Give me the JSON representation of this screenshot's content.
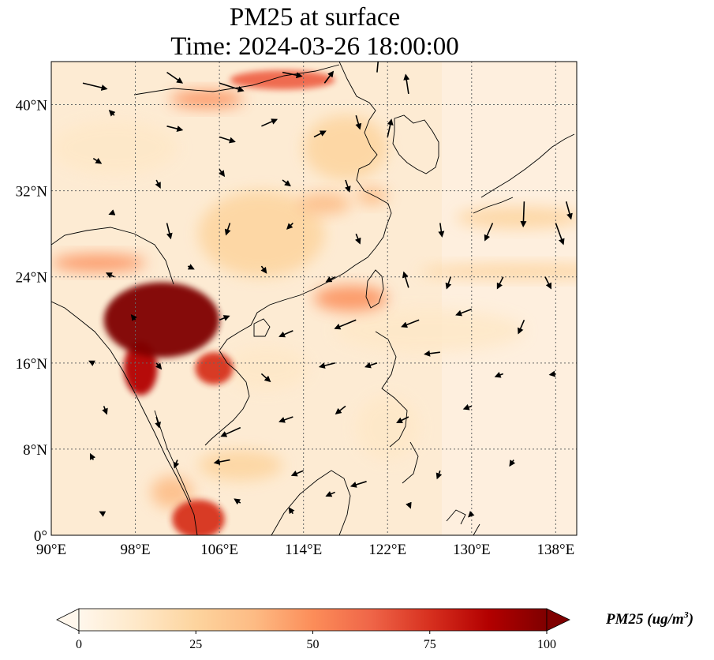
{
  "title": {
    "line1": "PM25 at surface",
    "line2": "Time: 2024-03-26 18:00:00"
  },
  "map": {
    "projection": "PlateCarree",
    "lon_range": [
      90,
      140
    ],
    "lat_range": [
      0,
      44
    ],
    "gridlines": "dotted",
    "coastlines": true,
    "lon_ticks": [
      90,
      98,
      106,
      114,
      122,
      130,
      138
    ],
    "lat_ticks": [
      0,
      8,
      16,
      24,
      32,
      40
    ],
    "lon_tick_labels": [
      "90°E",
      "98°E",
      "106°E",
      "114°E",
      "122°E",
      "130°E",
      "138°E"
    ],
    "lat_tick_labels": [
      "0°",
      "8°N",
      "16°N",
      "24°N",
      "32°N",
      "40°N"
    ]
  },
  "colorbar": {
    "colormap": "OrRd",
    "extend": "both",
    "range": [
      0,
      100
    ],
    "ticks": [
      0,
      25,
      50,
      75,
      100
    ],
    "tick_labels": [
      "0",
      "25",
      "50",
      "75",
      "100"
    ],
    "label_prefix": "PM25 (ug/m",
    "label_exp": "3",
    "label_suffix": ")",
    "colors": [
      "#fff7ec",
      "#fee8c8",
      "#fdd49e",
      "#fdbb84",
      "#fc8d59",
      "#ef6548",
      "#d7301f",
      "#b30000",
      "#7f0000"
    ]
  },
  "pm25_hotspots": [
    {
      "lon": 100.5,
      "lat": 20.0,
      "rx": 5.5,
      "ry": 3.5,
      "value": 100
    },
    {
      "lon": 98.5,
      "lat": 15.5,
      "rx": 1.6,
      "ry": 2.5,
      "value": 90
    },
    {
      "lon": 105.5,
      "lat": 15.5,
      "rx": 1.8,
      "ry": 1.5,
      "value": 80
    },
    {
      "lon": 94.5,
      "lat": 25.3,
      "rx": 4.5,
      "ry": 0.8,
      "value": 45
    },
    {
      "lon": 104.8,
      "lat": 40.5,
      "rx": 3.5,
      "ry": 0.8,
      "value": 55
    },
    {
      "lon": 112.0,
      "lat": 42.3,
      "rx": 5.0,
      "ry": 0.9,
      "value": 65
    },
    {
      "lon": 118.5,
      "lat": 22.0,
      "rx": 3.5,
      "ry": 1.2,
      "value": 50
    },
    {
      "lon": 108.0,
      "lat": 6.5,
      "rx": 4.0,
      "ry": 1.4,
      "value": 30
    },
    {
      "lon": 104.0,
      "lat": 1.5,
      "rx": 2.5,
      "ry": 1.8,
      "value": 70
    },
    {
      "lon": 116.0,
      "lat": 30.8,
      "rx": 2.5,
      "ry": 1.0,
      "value": 35
    },
    {
      "lon": 110.0,
      "lat": 28.0,
      "rx": 6.0,
      "ry": 4.0,
      "value": 22
    },
    {
      "lon": 118.0,
      "lat": 36.0,
      "rx": 4.0,
      "ry": 3.0,
      "value": 24
    },
    {
      "lon": 120.5,
      "lat": 31.5,
      "rx": 1.5,
      "ry": 0.8,
      "value": 42
    },
    {
      "lon": 135.0,
      "lat": 24.5,
      "rx": 10.0,
      "ry": 0.7,
      "value": 22
    },
    {
      "lon": 134.5,
      "lat": 29.5,
      "rx": 6.0,
      "ry": 1.0,
      "value": 24
    },
    {
      "lon": 126.0,
      "lat": 19.0,
      "rx": 9.0,
      "ry": 2.0,
      "value": 14
    },
    {
      "lon": 96.0,
      "lat": 36.0,
      "rx": 6.0,
      "ry": 2.5,
      "value": 12
    },
    {
      "lon": 110.5,
      "lat": 15.5,
      "rx": 4.0,
      "ry": 2.0,
      "value": 14
    },
    {
      "lon": 122.0,
      "lat": 10.0,
      "rx": 3.0,
      "ry": 3.0,
      "value": 12
    },
    {
      "lon": 101.5,
      "lat": 4.0,
      "rx": 2.0,
      "ry": 1.5,
      "value": 35
    }
  ],
  "wind_vectors": [
    {
      "lon": 93,
      "lat": 42,
      "u": 2.5,
      "v": -0.6
    },
    {
      "lon": 101,
      "lat": 43,
      "u": 1.6,
      "v": -1.1
    },
    {
      "lon": 106,
      "lat": 42,
      "u": 2.5,
      "v": -0.8
    },
    {
      "lon": 112,
      "lat": 43,
      "u": 2.0,
      "v": -0.4
    },
    {
      "lon": 116,
      "lat": 42,
      "u": 0.9,
      "v": 1.2
    },
    {
      "lon": 121,
      "lat": 43,
      "u": 0.2,
      "v": 2.1
    },
    {
      "lon": 124,
      "lat": 41,
      "u": -0.3,
      "v": 2.0
    },
    {
      "lon": 96,
      "lat": 39,
      "u": -0.5,
      "v": 0.5
    },
    {
      "lon": 101,
      "lat": 38,
      "u": 1.6,
      "v": -0.4
    },
    {
      "lon": 106,
      "lat": 37,
      "u": 1.6,
      "v": -0.5
    },
    {
      "lon": 110,
      "lat": 38,
      "u": 1.6,
      "v": 0.7
    },
    {
      "lon": 115,
      "lat": 37,
      "u": 1.2,
      "v": 0.6
    },
    {
      "lon": 119,
      "lat": 39,
      "u": 0.4,
      "v": -1.4
    },
    {
      "lon": 122,
      "lat": 37,
      "u": 0.4,
      "v": 1.8
    },
    {
      "lon": 94,
      "lat": 35,
      "u": 0.8,
      "v": -0.5
    },
    {
      "lon": 100,
      "lat": 33,
      "u": 0.4,
      "v": -0.8
    },
    {
      "lon": 106,
      "lat": 34,
      "u": 0.5,
      "v": -0.7
    },
    {
      "lon": 112,
      "lat": 33,
      "u": 0.8,
      "v": -0.6
    },
    {
      "lon": 118,
      "lat": 33,
      "u": 0.4,
      "v": -1.2
    },
    {
      "lon": 96,
      "lat": 30,
      "u": -0.5,
      "v": -0.2
    },
    {
      "lon": 101,
      "lat": 29,
      "u": 0.4,
      "v": -1.6
    },
    {
      "lon": 107,
      "lat": 29,
      "u": -0.4,
      "v": -1.2
    },
    {
      "lon": 113,
      "lat": 29,
      "u": -0.6,
      "v": -0.6
    },
    {
      "lon": 119,
      "lat": 28,
      "u": 0.4,
      "v": -1.0
    },
    {
      "lon": 127,
      "lat": 29,
      "u": 0.2,
      "v": -1.4
    },
    {
      "lon": 132,
      "lat": 29,
      "u": -0.8,
      "v": -1.8
    },
    {
      "lon": 135,
      "lat": 31,
      "u": -0.1,
      "v": -2.6
    },
    {
      "lon": 138,
      "lat": 29,
      "u": 0.8,
      "v": -2.2
    },
    {
      "lon": 139,
      "lat": 31,
      "u": 0.5,
      "v": -1.8
    },
    {
      "lon": 96,
      "lat": 24,
      "u": -0.8,
      "v": 0.4
    },
    {
      "lon": 103,
      "lat": 25,
      "u": 0.6,
      "v": -0.3
    },
    {
      "lon": 110,
      "lat": 25,
      "u": 0.5,
      "v": -0.7
    },
    {
      "lon": 117,
      "lat": 24,
      "u": -0.9,
      "v": -0.5
    },
    {
      "lon": 124,
      "lat": 23,
      "u": -0.5,
      "v": 1.6
    },
    {
      "lon": 128,
      "lat": 24,
      "u": -0.4,
      "v": -1.2
    },
    {
      "lon": 133,
      "lat": 24,
      "u": -0.6,
      "v": -1.2
    },
    {
      "lon": 137,
      "lat": 24,
      "u": 0.6,
      "v": -1.2
    },
    {
      "lon": 98,
      "lat": 20,
      "u": -0.4,
      "v": 0.5
    },
    {
      "lon": 106,
      "lat": 20,
      "u": 1.0,
      "v": 0.4
    },
    {
      "lon": 113,
      "lat": 19,
      "u": -1.4,
      "v": -0.6
    },
    {
      "lon": 119,
      "lat": 20,
      "u": -2.2,
      "v": -0.9
    },
    {
      "lon": 125,
      "lat": 20,
      "u": -1.8,
      "v": -0.7
    },
    {
      "lon": 130,
      "lat": 21,
      "u": -1.6,
      "v": -0.6
    },
    {
      "lon": 135,
      "lat": 20,
      "u": -0.6,
      "v": -1.4
    },
    {
      "lon": 94,
      "lat": 16,
      "u": -0.4,
      "v": 0.2
    },
    {
      "lon": 100,
      "lat": 16,
      "u": 0.5,
      "v": -0.6
    },
    {
      "lon": 110,
      "lat": 15,
      "u": 0.9,
      "v": -0.8
    },
    {
      "lon": 117,
      "lat": 16,
      "u": -1.6,
      "v": -0.4
    },
    {
      "lon": 121,
      "lat": 16,
      "u": -1.2,
      "v": -0.4
    },
    {
      "lon": 127,
      "lat": 17,
      "u": -1.6,
      "v": -0.2
    },
    {
      "lon": 133,
      "lat": 15,
      "u": -0.8,
      "v": -0.3
    },
    {
      "lon": 138,
      "lat": 15,
      "u": -0.6,
      "v": -0.1
    },
    {
      "lon": 95,
      "lat": 12,
      "u": 0.3,
      "v": -0.8
    },
    {
      "lon": 100,
      "lat": 11,
      "u": 0.3,
      "v": -1.1
    },
    {
      "lon": 108,
      "lat": 10,
      "u": -2.0,
      "v": -0.9
    },
    {
      "lon": 113,
      "lat": 11,
      "u": -1.4,
      "v": -0.5
    },
    {
      "lon": 118,
      "lat": 12,
      "u": -1.0,
      "v": -0.8
    },
    {
      "lon": 124,
      "lat": 11,
      "u": -1.2,
      "v": -0.6
    },
    {
      "lon": 130,
      "lat": 12,
      "u": -0.8,
      "v": -0.3
    },
    {
      "lon": 94,
      "lat": 7,
      "u": -0.3,
      "v": 0.6
    },
    {
      "lon": 102,
      "lat": 7,
      "u": -0.3,
      "v": -0.8
    },
    {
      "lon": 107,
      "lat": 7,
      "u": -1.6,
      "v": -0.3
    },
    {
      "lon": 114,
      "lat": 6,
      "u": -1.2,
      "v": -0.5
    },
    {
      "lon": 120,
      "lat": 5,
      "u": -1.6,
      "v": -0.5
    },
    {
      "lon": 127,
      "lat": 6,
      "u": -0.3,
      "v": -0.8
    },
    {
      "lon": 134,
      "lat": 7,
      "u": -0.4,
      "v": -0.6
    },
    {
      "lon": 95,
      "lat": 2,
      "u": -0.4,
      "v": 0.2
    },
    {
      "lon": 108,
      "lat": 3,
      "u": -0.6,
      "v": 0.4
    },
    {
      "lon": 113,
      "lat": 2,
      "u": -0.4,
      "v": 0.6
    },
    {
      "lon": 117,
      "lat": 4,
      "u": -0.9,
      "v": -0.4
    },
    {
      "lon": 124,
      "lat": 3,
      "u": 0.2,
      "v": -0.5
    },
    {
      "lon": 130,
      "lat": 2,
      "u": -0.3,
      "v": -0.3
    }
  ]
}
